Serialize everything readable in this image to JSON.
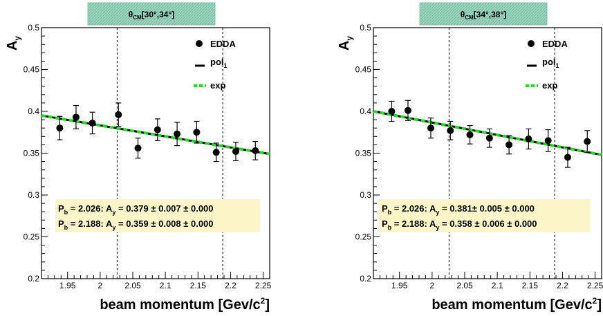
{
  "chart_data": [
    {
      "type": "scatter",
      "title": "θ",
      "title_sub": "CM",
      "title_range": "[30°,34°]",
      "ylabel": "A",
      "ylabel_sub": "y",
      "xlabel": "beam momentum [Gev/c",
      "xlabel_sup": "2",
      "xlabel_close": "]",
      "xlim": [
        1.91,
        2.26
      ],
      "ylim": [
        0.2,
        0.5
      ],
      "x_ticks": [
        1.95,
        2.0,
        2.05,
        2.1,
        2.15,
        2.2,
        2.25
      ],
      "x_tick_labels": [
        "1.95",
        "2",
        "2.05",
        "2.1",
        "2.15",
        "2.2",
        "2.25"
      ],
      "y_ticks": [
        0.2,
        0.25,
        0.3,
        0.35,
        0.4,
        0.45,
        0.5
      ],
      "y_tick_labels": [
        "0.2",
        "0.25",
        "0.3",
        "0.35",
        "0.4",
        "0.45",
        "0.5"
      ],
      "grid": false,
      "legend_position": "top-right",
      "legend": [
        {
          "label": "EDDA",
          "sub": "",
          "kind": "marker"
        },
        {
          "label": "pol",
          "sub": "1",
          "kind": "line"
        },
        {
          "label": "exp",
          "sub": "",
          "kind": "dashed"
        }
      ],
      "series": [
        {
          "name": "EDDA",
          "x": [
            1.938,
            1.963,
            1.988,
            2.028,
            2.058,
            2.088,
            2.118,
            2.148,
            2.178,
            2.208,
            2.238
          ],
          "y": [
            0.38,
            0.393,
            0.386,
            0.396,
            0.356,
            0.378,
            0.373,
            0.375,
            0.351,
            0.352,
            0.353
          ],
          "yerr": [
            0.014,
            0.014,
            0.013,
            0.014,
            0.012,
            0.013,
            0.014,
            0.013,
            0.011,
            0.011,
            0.011
          ],
          "color": "#000000"
        }
      ],
      "fit_lines": [
        {
          "name": "pol1",
          "x": [
            1.91,
            2.26
          ],
          "y": [
            0.395,
            0.349
          ],
          "color": "#000000"
        },
        {
          "name": "exp",
          "x": [
            1.91,
            2.26
          ],
          "y": [
            0.395,
            0.349
          ],
          "color": "#22dd22"
        }
      ],
      "vlines": [
        2.026,
        2.188
      ],
      "annotations": [
        {
          "p_label": "P",
          "p_sub": "b",
          "text1": " = 2.026: A",
          "a_sub": "y",
          "text2": " = 0.379 ± 0.007 ± 0.000"
        },
        {
          "p_label": "P",
          "p_sub": "b",
          "text1": " = 2.188: A",
          "a_sub": "y",
          "text2": " = 0.359 ± 0.008 ± 0.000"
        }
      ]
    },
    {
      "type": "scatter",
      "title": "θ",
      "title_sub": "CM",
      "title_range": "[34°,38°]",
      "ylabel": "A",
      "ylabel_sub": "y",
      "xlabel": "beam momentum [Gev/c",
      "xlabel_sup": "2",
      "xlabel_close": "]",
      "xlim": [
        1.91,
        2.26
      ],
      "ylim": [
        0.2,
        0.5
      ],
      "x_ticks": [
        1.95,
        2.0,
        2.05,
        2.1,
        2.15,
        2.2,
        2.25
      ],
      "x_tick_labels": [
        "1.95",
        "2",
        "2.05",
        "2.1",
        "2.15",
        "2.2",
        "2.25"
      ],
      "y_ticks": [
        0.2,
        0.25,
        0.3,
        0.35,
        0.4,
        0.45,
        0.5
      ],
      "y_tick_labels": [
        "0.2",
        "0.25",
        "0.3",
        "0.35",
        "0.4",
        "0.45",
        "0.5"
      ],
      "grid": false,
      "legend_position": "top-right",
      "legend": [
        {
          "label": "EDDA",
          "sub": "",
          "kind": "marker"
        },
        {
          "label": "pol",
          "sub": "1",
          "kind": "line"
        },
        {
          "label": "exp",
          "sub": "",
          "kind": "dashed"
        }
      ],
      "series": [
        {
          "name": "EDDA",
          "x": [
            1.938,
            1.963,
            1.998,
            2.028,
            2.058,
            2.088,
            2.118,
            2.148,
            2.178,
            2.208,
            2.238
          ],
          "y": [
            0.4,
            0.401,
            0.38,
            0.377,
            0.372,
            0.368,
            0.36,
            0.367,
            0.365,
            0.345,
            0.364
          ],
          "yerr": [
            0.012,
            0.012,
            0.012,
            0.011,
            0.011,
            0.011,
            0.011,
            0.012,
            0.013,
            0.012,
            0.013
          ],
          "color": "#000000"
        }
      ],
      "fit_lines": [
        {
          "name": "pol1",
          "x": [
            1.91,
            2.26
          ],
          "y": [
            0.4,
            0.348
          ],
          "color": "#000000"
        },
        {
          "name": "exp",
          "x": [
            1.91,
            2.26
          ],
          "y": [
            0.4,
            0.348
          ],
          "color": "#22dd22"
        }
      ],
      "vlines": [
        2.026,
        2.188
      ],
      "annotations": [
        {
          "p_label": "P",
          "p_sub": "b",
          "text1": " = 2.026: A",
          "a_sub": "y",
          "text2": " = 0.381± 0.005 ± 0.000"
        },
        {
          "p_label": "P",
          "p_sub": "b",
          "text1": " = 2.188: A",
          "a_sub": "y",
          "text2": " = 0.358 ± 0.006 ± 0.000"
        }
      ]
    }
  ]
}
